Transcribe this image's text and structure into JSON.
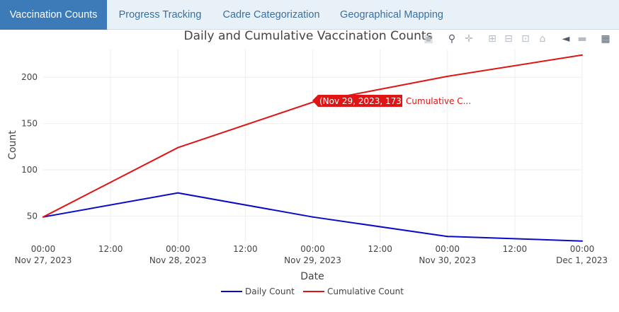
{
  "tabs": [
    {
      "label": "Vaccination Counts",
      "active": true
    },
    {
      "label": "Progress Tracking",
      "active": false
    },
    {
      "label": "Cadre Categorization",
      "active": false
    },
    {
      "label": "Geographical Mapping",
      "active": false
    }
  ],
  "modebar": {
    "icons": [
      "camera-icon",
      "zoom-icon",
      "pan-icon",
      "zoom-in-icon",
      "zoom-out-icon",
      "autoscale-icon",
      "reset-axes-icon",
      "spike-lines-icon",
      "compare-data-icon",
      "plotly-logo-icon"
    ]
  },
  "colors": {
    "tab_active_bg": "#3c7ab8",
    "tab_text": "#3a6f9e",
    "daily": "#0a0ac8",
    "cumulative": "#e01414"
  },
  "chart_data": {
    "type": "line",
    "title": "Daily and Cumulative Vaccination Counts",
    "xlabel": "Date",
    "ylabel": "Count",
    "x": [
      "2023-11-27",
      "2023-11-28",
      "2023-11-29",
      "2023-11-30",
      "2023-12-01"
    ],
    "series": [
      {
        "name": "Daily Count",
        "values": [
          49,
          75,
          49,
          28,
          23
        ],
        "color": "#0a0ac8"
      },
      {
        "name": "Cumulative Count",
        "values": [
          49,
          124,
          173,
          201,
          224
        ],
        "color": "#e01414"
      }
    ],
    "x_ticks": [
      {
        "time": "00:00",
        "date": "Nov 27, 2023"
      },
      {
        "time": "12:00",
        "date": ""
      },
      {
        "time": "00:00",
        "date": "Nov 28, 2023"
      },
      {
        "time": "12:00",
        "date": ""
      },
      {
        "time": "00:00",
        "date": "Nov 29, 2023"
      },
      {
        "time": "12:00",
        "date": ""
      },
      {
        "time": "00:00",
        "date": "Nov 30, 2023"
      },
      {
        "time": "12:00",
        "date": ""
      },
      {
        "time": "00:00",
        "date": "Dec 1, 2023"
      }
    ],
    "y_ticks": [
      50,
      100,
      150,
      200
    ],
    "ylim": [
      22,
      230
    ],
    "grid": true,
    "legend_position": "bottom-center",
    "hover": {
      "label": "(Nov 29, 2023, 173)",
      "series_label": "Cumulative C...",
      "x": "2023-11-29",
      "y": 173
    }
  }
}
